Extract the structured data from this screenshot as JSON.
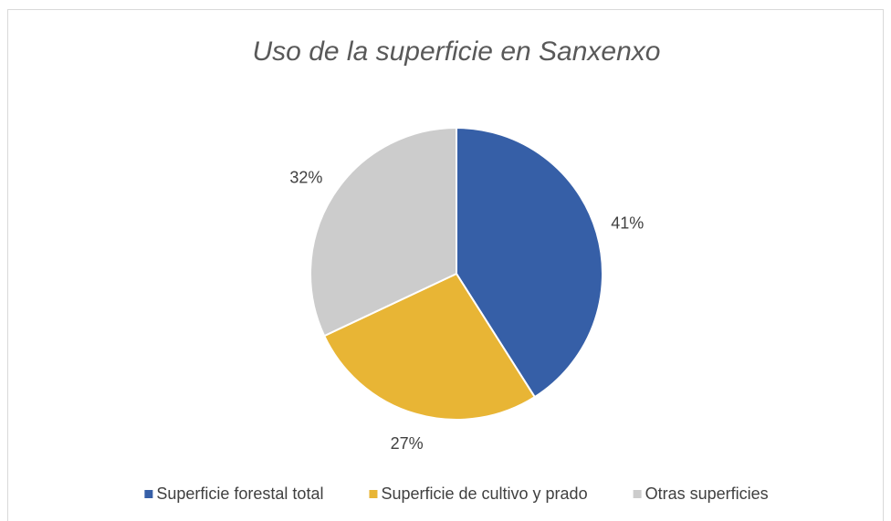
{
  "chart_data": {
    "type": "pie",
    "title": "Uso de la superficie en Sanxenxo",
    "categories": [
      "Superficie forestal total",
      "Superficie de cultivo y prado",
      "Otras superficies"
    ],
    "values": [
      41,
      27,
      32
    ],
    "value_labels": [
      "41%",
      "27%",
      "32%"
    ],
    "colors": [
      "#365fa7",
      "#e8b535",
      "#cccccc"
    ],
    "legend": "bottom"
  }
}
